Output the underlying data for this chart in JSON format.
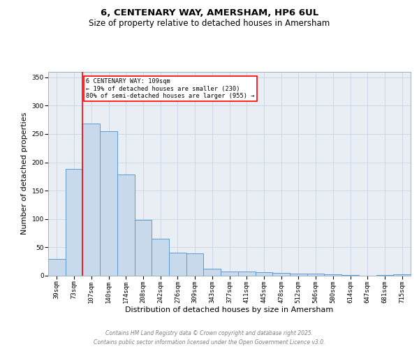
{
  "title_line1": "6, CENTENARY WAY, AMERSHAM, HP6 6UL",
  "title_line2": "Size of property relative to detached houses in Amersham",
  "xlabel": "Distribution of detached houses by size in Amersham",
  "ylabel": "Number of detached properties",
  "categories": [
    "39sqm",
    "73sqm",
    "107sqm",
    "140sqm",
    "174sqm",
    "208sqm",
    "242sqm",
    "276sqm",
    "309sqm",
    "343sqm",
    "377sqm",
    "411sqm",
    "445sqm",
    "478sqm",
    "512sqm",
    "546sqm",
    "580sqm",
    "614sqm",
    "647sqm",
    "681sqm",
    "715sqm"
  ],
  "values": [
    30,
    188,
    268,
    255,
    178,
    99,
    65,
    41,
    40,
    12,
    8,
    8,
    6,
    5,
    4,
    4,
    3,
    1,
    0,
    1,
    2
  ],
  "bar_color": "#c8d9ec",
  "bar_edge_color": "#5b9bd5",
  "annotation_text": "6 CENTENARY WAY: 109sqm\n← 19% of detached houses are smaller (230)\n80% of semi-detached houses are larger (955) →",
  "annotation_box_color": "white",
  "annotation_box_edge_color": "red",
  "ylim": [
    0,
    360
  ],
  "yticks": [
    0,
    50,
    100,
    150,
    200,
    250,
    300,
    350
  ],
  "grid_color": "#c8d4e0",
  "background_color": "#e8eef4",
  "footer_line1": "Contains HM Land Registry data © Crown copyright and database right 2025.",
  "footer_line2": "Contains public sector information licensed under the Open Government Licence v3.0.",
  "title_fontsize": 9.5,
  "subtitle_fontsize": 8.5,
  "tick_fontsize": 6.5,
  "label_fontsize": 8,
  "footer_fontsize": 5.5
}
